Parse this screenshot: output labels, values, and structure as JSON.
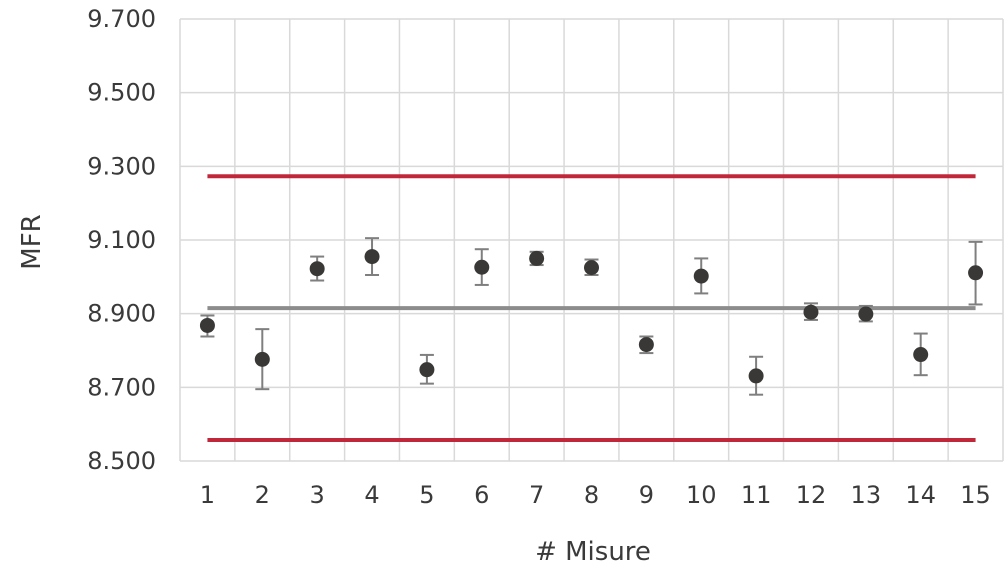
{
  "chart_data": {
    "type": "scatter",
    "title": "",
    "xlabel": "# Misure",
    "ylabel": "MFR",
    "categories": [
      "1",
      "2",
      "3",
      "4",
      "5",
      "6",
      "7",
      "8",
      "9",
      "10",
      "11",
      "12",
      "13",
      "14",
      "15"
    ],
    "ylim": [
      8.5,
      9.7
    ],
    "yticks": [
      {
        "value": 8.5,
        "label": "8.500"
      },
      {
        "value": 8.7,
        "label": "8.700"
      },
      {
        "value": 8.9,
        "label": "8.900"
      },
      {
        "value": 9.1,
        "label": "9.100"
      },
      {
        "value": 9.3,
        "label": "9.300"
      },
      {
        "value": 9.5,
        "label": "9.500"
      },
      {
        "value": 9.7,
        "label": "9.700"
      }
    ],
    "grid": true,
    "series": [
      {
        "values": [
          8.868,
          8.776,
          9.022,
          9.055,
          8.748,
          9.026,
          9.05,
          9.025,
          8.816,
          9.002,
          8.731,
          8.904,
          8.899,
          8.789,
          9.011
        ],
        "err_low": [
          8.838,
          8.695,
          8.99,
          9.005,
          8.71,
          8.978,
          9.032,
          9.005,
          8.793,
          8.955,
          8.68,
          8.883,
          8.879,
          8.733,
          8.925
        ],
        "err_high": [
          8.895,
          8.858,
          9.055,
          9.105,
          8.788,
          9.075,
          9.068,
          9.047,
          8.838,
          9.05,
          8.783,
          8.928,
          8.921,
          8.846,
          9.095
        ]
      }
    ],
    "reference_lines": [
      {
        "value": 8.915,
        "color": "#8c8c8c"
      },
      {
        "value": 9.273,
        "color": "#c0283a"
      },
      {
        "value": 8.557,
        "color": "#c0283a"
      }
    ],
    "colors": {
      "marker": "#3a3836",
      "error_bar": "#7f7f7f",
      "grid": "#d9d9d9",
      "mean_line": "#8c8c8c",
      "limit_line": "#c0283a"
    }
  }
}
